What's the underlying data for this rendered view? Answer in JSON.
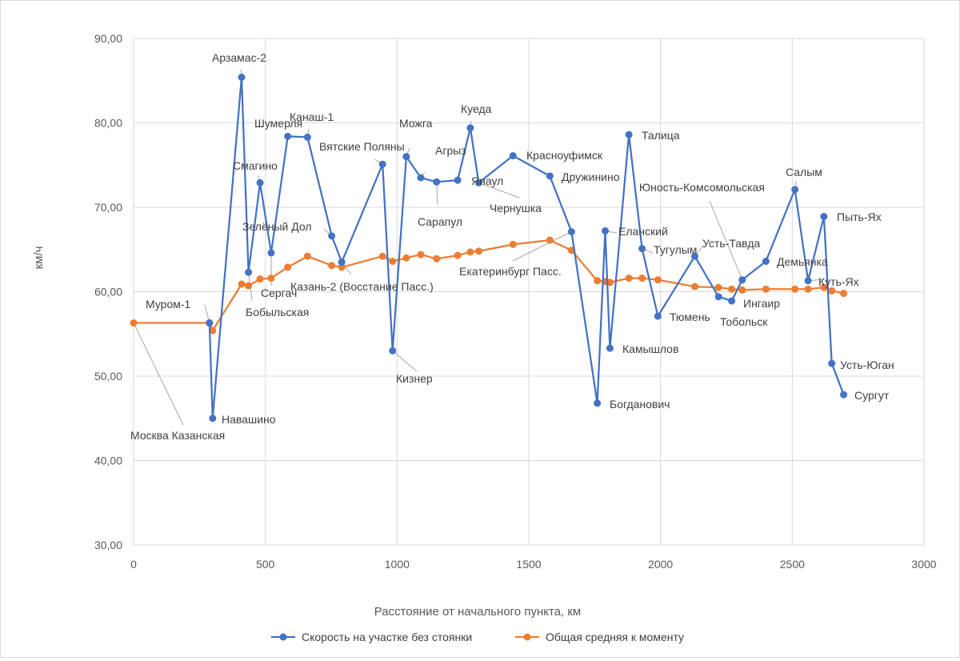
{
  "chart_data": {
    "type": "line",
    "title": "",
    "xlabel": "Расстояние от начального пункта, км",
    "ylabel": "км/ч",
    "xlim": [
      0,
      3000
    ],
    "ylim": [
      30,
      90
    ],
    "x_ticks": [
      "0",
      "500",
      "1000",
      "1500",
      "2000",
      "2500",
      "3000"
    ],
    "y_ticks": [
      "30,00",
      "40,00",
      "50,00",
      "60,00",
      "70,00",
      "80,00",
      "90,00"
    ],
    "grid": true,
    "legend_position": "bottom",
    "series": [
      {
        "name": "Скорость на участке без стоянки",
        "color": "#4472C4",
        "points": [
          [
            288,
            56.3
          ],
          [
            300,
            45.0
          ],
          [
            410,
            85.4
          ],
          [
            436,
            62.3
          ],
          [
            480,
            72.9
          ],
          [
            522,
            64.6
          ],
          [
            585,
            78.4
          ],
          [
            660,
            78.3
          ],
          [
            752,
            66.6
          ],
          [
            790,
            63.5
          ],
          [
            945,
            75.1
          ],
          [
            983,
            53.0
          ],
          [
            1035,
            76.0
          ],
          [
            1090,
            73.5
          ],
          [
            1150,
            73.0
          ],
          [
            1230,
            73.2
          ],
          [
            1278,
            79.4
          ],
          [
            1310,
            72.9
          ],
          [
            1440,
            76.1
          ],
          [
            1580,
            73.7
          ],
          [
            1662,
            67.1
          ],
          [
            1760,
            46.8
          ],
          [
            1790,
            67.2
          ],
          [
            1808,
            53.3
          ],
          [
            1880,
            78.6
          ],
          [
            1930,
            65.1
          ],
          [
            1990,
            57.1
          ],
          [
            2130,
            64.2
          ],
          [
            2220,
            59.4
          ],
          [
            2270,
            58.9
          ],
          [
            2310,
            61.4
          ],
          [
            2400,
            63.6
          ],
          [
            2510,
            72.1
          ],
          [
            2560,
            61.3
          ],
          [
            2620,
            68.9
          ],
          [
            2650,
            51.5
          ],
          [
            2695,
            47.8
          ]
        ]
      },
      {
        "name": "Общая средняя к моменту",
        "color": "#ED7D31",
        "points": [
          [
            0,
            56.3
          ],
          [
            288,
            56.3
          ],
          [
            300,
            55.4
          ],
          [
            410,
            60.9
          ],
          [
            436,
            60.7
          ],
          [
            480,
            61.5
          ],
          [
            522,
            61.6
          ],
          [
            585,
            62.9
          ],
          [
            660,
            64.2
          ],
          [
            752,
            63.1
          ],
          [
            790,
            62.9
          ],
          [
            945,
            64.2
          ],
          [
            983,
            63.6
          ],
          [
            1035,
            64.0
          ],
          [
            1090,
            64.4
          ],
          [
            1150,
            63.9
          ],
          [
            1230,
            64.3
          ],
          [
            1278,
            64.7
          ],
          [
            1310,
            64.8
          ],
          [
            1440,
            65.6
          ],
          [
            1580,
            66.1
          ],
          [
            1662,
            64.9
          ],
          [
            1760,
            61.3
          ],
          [
            1790,
            61.2
          ],
          [
            1808,
            61.1
          ],
          [
            1880,
            61.6
          ],
          [
            1930,
            61.6
          ],
          [
            1990,
            61.4
          ],
          [
            2130,
            60.6
          ],
          [
            2220,
            60.5
          ],
          [
            2270,
            60.3
          ],
          [
            2310,
            60.2
          ],
          [
            2400,
            60.3
          ],
          [
            2510,
            60.3
          ],
          [
            2560,
            60.3
          ],
          [
            2620,
            60.5
          ],
          [
            2650,
            60.1
          ],
          [
            2695,
            59.8
          ]
        ]
      }
    ],
    "annotations": [
      {
        "text": "Москва Казанская",
        "x": 0,
        "y": 56.3
      },
      {
        "text": "Муром-1",
        "x": 288,
        "y": 56.3
      },
      {
        "text": "Навашино",
        "x": 300,
        "y": 45.0
      },
      {
        "text": "Арзамас-2",
        "x": 410,
        "y": 85.4
      },
      {
        "text": "Бобыльская",
        "x": 436,
        "y": 62.3
      },
      {
        "text": "Смагино",
        "x": 480,
        "y": 72.9
      },
      {
        "text": "Сергач",
        "x": 522,
        "y": 64.6
      },
      {
        "text": "Шумерля",
        "x": 585,
        "y": 78.4
      },
      {
        "text": "Канаш-1",
        "x": 660,
        "y": 78.3
      },
      {
        "text": "Зелёный Дол",
        "x": 752,
        "y": 66.6
      },
      {
        "text": "Казань-2 (Восстание Пасс.)",
        "x": 790,
        "y": 63.5
      },
      {
        "text": "Вятские Поляны",
        "x": 945,
        "y": 75.1
      },
      {
        "text": "Кизнер",
        "x": 983,
        "y": 53.0
      },
      {
        "text": "Можга",
        "x": 1035,
        "y": 76.0
      },
      {
        "text": "Агрыз",
        "x": 1090,
        "y": 73.5
      },
      {
        "text": "Сарапул",
        "x": 1150,
        "y": 73.0
      },
      {
        "text": "Куеда",
        "x": 1278,
        "y": 79.4
      },
      {
        "text": "Янаул",
        "x": 1230,
        "y": 73.2
      },
      {
        "text": "Чернушка",
        "x": 1310,
        "y": 72.9
      },
      {
        "text": "Красноуфимск",
        "x": 1440,
        "y": 76.1
      },
      {
        "text": "Дружинино",
        "x": 1580,
        "y": 73.7
      },
      {
        "text": "Екатеринбург Пасс.",
        "x": 1662,
        "y": 67.1
      },
      {
        "text": "Богданович",
        "x": 1760,
        "y": 46.8
      },
      {
        "text": "Еланский",
        "x": 1790,
        "y": 67.2
      },
      {
        "text": "Камышлов",
        "x": 1808,
        "y": 53.3
      },
      {
        "text": "Талица",
        "x": 1880,
        "y": 78.6
      },
      {
        "text": "Тугулым",
        "x": 1930,
        "y": 65.1
      },
      {
        "text": "Тюмень",
        "x": 1990,
        "y": 57.1
      },
      {
        "text": "Юность-Комсомольская",
        "x": 2310,
        "y": 61.4
      },
      {
        "text": "Усть-Тавда",
        "x": 2130,
        "y": 64.2
      },
      {
        "text": "Ингаир",
        "x": 2220,
        "y": 59.4
      },
      {
        "text": "Тобольск",
        "x": 2270,
        "y": 58.9
      },
      {
        "text": "Демьянка",
        "x": 2400,
        "y": 63.6
      },
      {
        "text": "Салым",
        "x": 2510,
        "y": 72.1
      },
      {
        "text": "Пыть-Ях",
        "x": 2620,
        "y": 68.9
      },
      {
        "text": "Куть-Ях",
        "x": 2560,
        "y": 61.3
      },
      {
        "text": "Усть-Юган",
        "x": 2650,
        "y": 51.5
      },
      {
        "text": "Сургут",
        "x": 2695,
        "y": 47.8
      }
    ]
  }
}
